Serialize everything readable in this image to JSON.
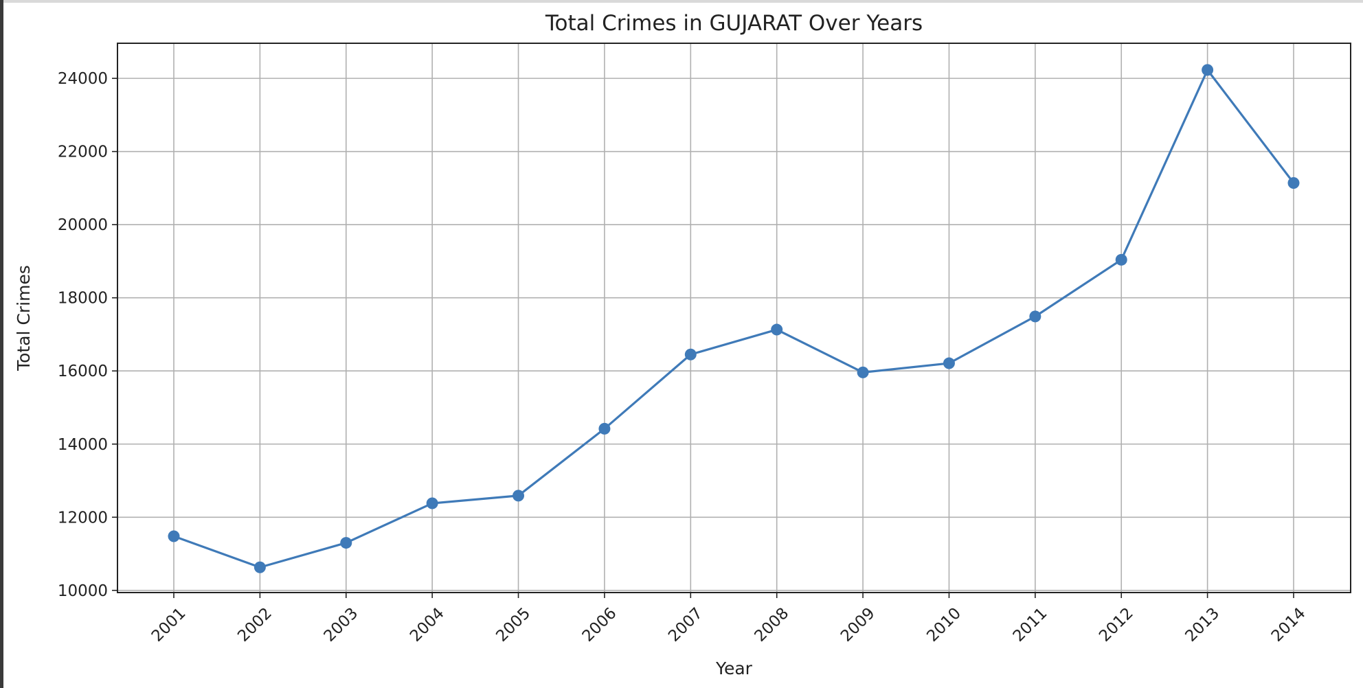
{
  "chart_data": {
    "type": "line",
    "title": "Total Crimes in GUJARAT Over Years",
    "xlabel": "Year",
    "ylabel": "Total Crimes",
    "x": [
      "2001",
      "2002",
      "2003",
      "2004",
      "2005",
      "2006",
      "2007",
      "2008",
      "2009",
      "2010",
      "2011",
      "2012",
      "2013",
      "2014"
    ],
    "series": [
      {
        "values": [
          11480,
          10630,
          11300,
          12380,
          12590,
          14420,
          16450,
          17130,
          15960,
          16210,
          17490,
          19040,
          24230,
          21140
        ],
        "color": "#3f7ab8",
        "marker": "circle"
      }
    ],
    "yticks": [
      10000,
      12000,
      14000,
      16000,
      18000,
      20000,
      22000,
      24000
    ],
    "ylim": [
      9940,
      24960
    ],
    "grid": true,
    "tick_rotation_deg": 45
  }
}
